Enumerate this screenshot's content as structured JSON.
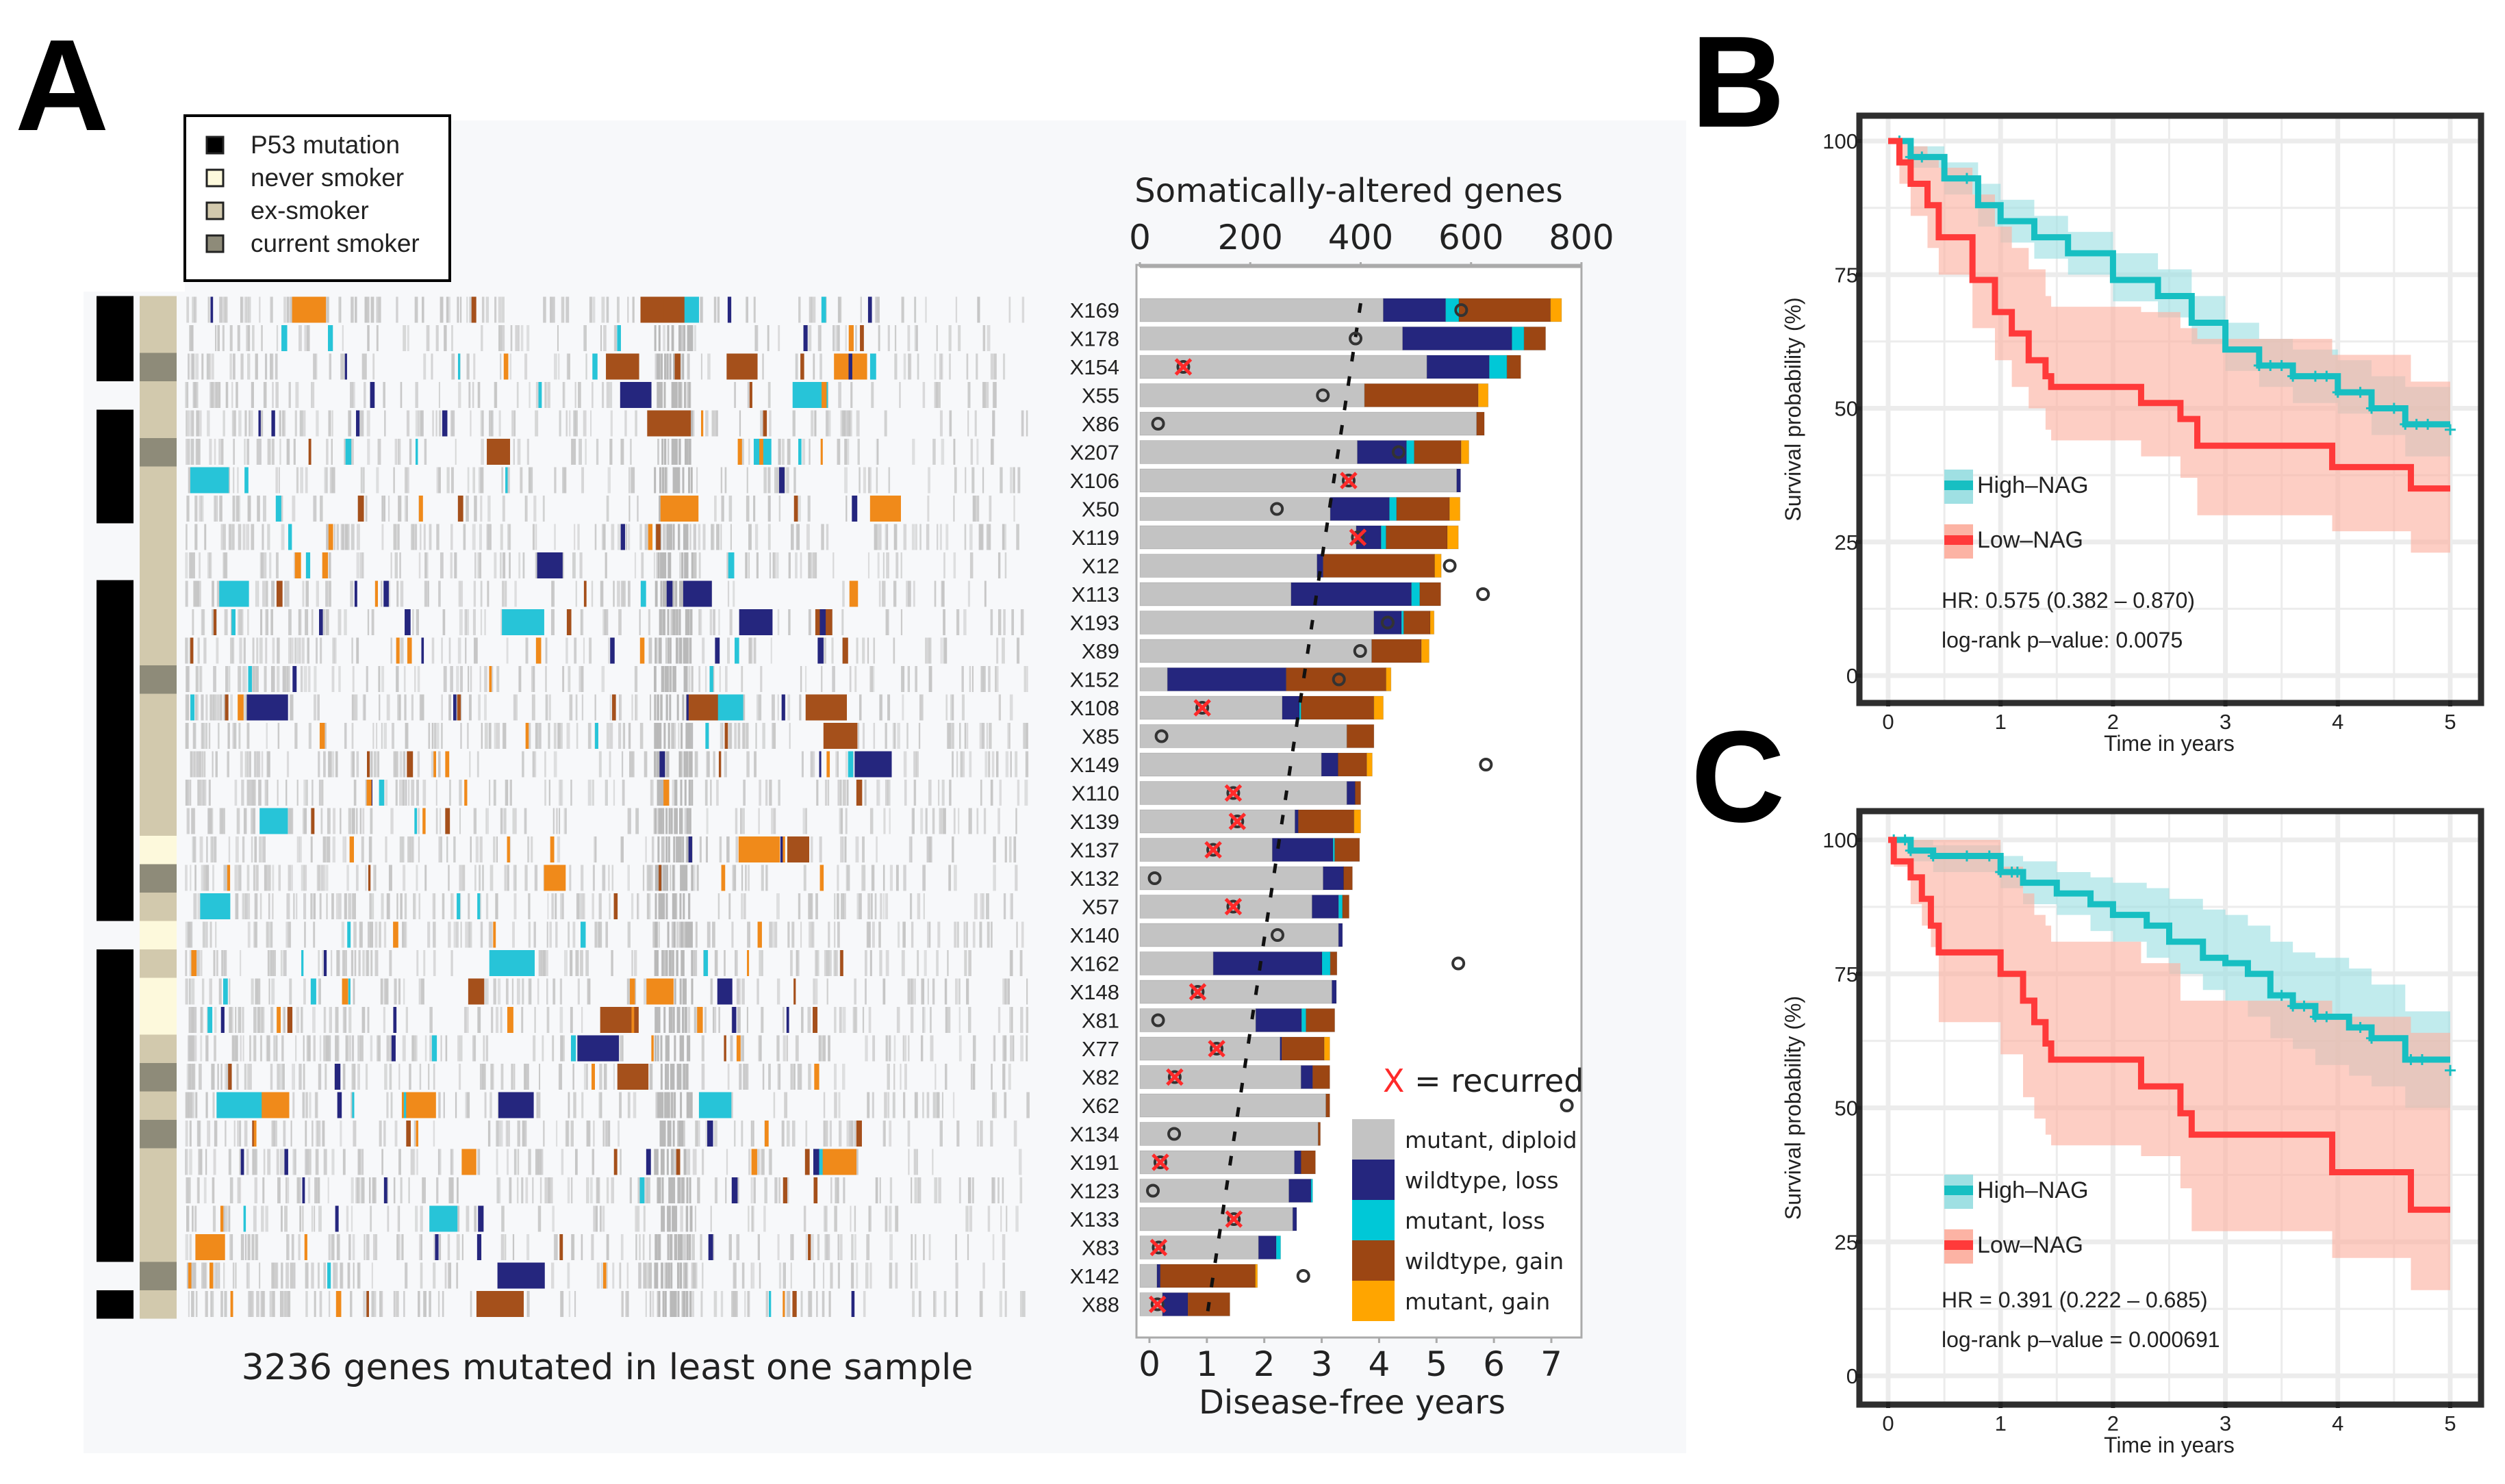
{
  "panel_labels": {
    "a": "A",
    "b": "B",
    "c": "C"
  },
  "annotation_legend": {
    "items": [
      {
        "label": "P53 mutation",
        "color": "#000000"
      },
      {
        "label": "never smoker",
        "color": "#fdf9dc"
      },
      {
        "label": "ex-smoker",
        "color": "#d2c9ad"
      },
      {
        "label": "current smoker",
        "color": "#8e8b79"
      }
    ]
  },
  "heatmap": {
    "caption": "3236 genes mutated in least one sample"
  },
  "chart_data": [
    {
      "type": "bar",
      "stacked": true,
      "orientation": "horizontal",
      "title": "Somatically-altered genes",
      "xlabel_bottom": "Disease-free years",
      "xlim_genes": [
        0,
        800
      ],
      "xticks_genes": [
        0,
        200,
        400,
        600,
        800
      ],
      "xlim_years": [
        0,
        7
      ],
      "xticks_years": [
        0,
        1,
        2,
        3,
        4,
        5,
        6,
        7
      ],
      "recurred_label_x": "X",
      "recurred_label_rest": " = recurred",
      "legend": [
        {
          "key": "mutant_diploid",
          "label": "mutant, diploid",
          "color": "#c3c3c3"
        },
        {
          "key": "wildtype_loss",
          "label": "wildtype, loss",
          "color": "#25267e"
        },
        {
          "key": "mutant_loss",
          "label": "mutant, loss",
          "color": "#00c8d7"
        },
        {
          "key": "wildtype_gain",
          "label": "wildtype, gain",
          "color": "#9c4613"
        },
        {
          "key": "mutant_gain",
          "label": "mutant, gain",
          "color": "#ffa500"
        }
      ],
      "trend_line_genes": [
        400,
        123
      ],
      "samples": [
        {
          "id": "X169",
          "p53": true,
          "smoking": "ex",
          "segments": [
            441,
            113,
            24,
            166,
            20
          ],
          "dfy": 5.43,
          "recurred": false
        },
        {
          "id": "X178",
          "p53": true,
          "smoking": "ex",
          "segments": [
            476,
            198,
            22,
            39,
            0
          ],
          "dfy": 3.59,
          "recurred": false
        },
        {
          "id": "X154",
          "p53": true,
          "smoking": "current",
          "segments": [
            520,
            113,
            32,
            25,
            0
          ],
          "dfy": 0.59,
          "recurred": true
        },
        {
          "id": "X55",
          "p53": false,
          "smoking": "ex",
          "segments": [
            407,
            0,
            0,
            206,
            18
          ],
          "dfy": 3.02,
          "recurred": false
        },
        {
          "id": "X86",
          "p53": true,
          "smoking": "ex",
          "segments": [
            610,
            0,
            0,
            14,
            0
          ],
          "dfy": 0.15,
          "recurred": false
        },
        {
          "id": "X207",
          "p53": true,
          "smoking": "current",
          "segments": [
            394,
            89,
            14,
            85,
            14
          ],
          "dfy": 4.34,
          "recurred": false
        },
        {
          "id": "X106",
          "p53": true,
          "smoking": "ex",
          "segments": [
            574,
            7,
            0,
            0,
            0
          ],
          "dfy": 3.47,
          "recurred": true
        },
        {
          "id": "X50",
          "p53": true,
          "smoking": "ex",
          "segments": [
            345,
            107,
            13,
            96,
            19
          ],
          "dfy": 2.22,
          "recurred": false
        },
        {
          "id": "X119",
          "p53": false,
          "smoking": "ex",
          "segments": [
            392,
            45,
            9,
            111,
            20
          ],
          "dfy": 3.63,
          "recurred": true
        },
        {
          "id": "X12",
          "p53": false,
          "smoking": "ex",
          "segments": [
            321,
            11,
            0,
            202,
            12
          ],
          "dfy": 5.23,
          "recurred": false
        },
        {
          "id": "X113",
          "p53": true,
          "smoking": "ex",
          "segments": [
            274,
            218,
            15,
            38,
            0
          ],
          "dfy": 5.81,
          "recurred": false
        },
        {
          "id": "X193",
          "p53": true,
          "smoking": "ex",
          "segments": [
            424,
            50,
            4,
            48,
            7
          ],
          "dfy": 4.15,
          "recurred": false
        },
        {
          "id": "X89",
          "p53": true,
          "smoking": "ex",
          "segments": [
            420,
            0,
            0,
            90,
            14
          ],
          "dfy": 3.67,
          "recurred": false
        },
        {
          "id": "X152",
          "p53": true,
          "smoking": "current",
          "segments": [
            50,
            215,
            0,
            181,
            9
          ],
          "dfy": 3.3,
          "recurred": false
        },
        {
          "id": "X108",
          "p53": true,
          "smoking": "ex",
          "segments": [
            258,
            31,
            3,
            132,
            17
          ],
          "dfy": 0.92,
          "recurred": true
        },
        {
          "id": "X85",
          "p53": true,
          "smoking": "ex",
          "segments": [
            375,
            0,
            0,
            49,
            0
          ],
          "dfy": 0.21,
          "recurred": false
        },
        {
          "id": "X149",
          "p53": true,
          "smoking": "ex",
          "segments": [
            329,
            30,
            0,
            52,
            10
          ],
          "dfy": 5.86,
          "recurred": false
        },
        {
          "id": "X110",
          "p53": true,
          "smoking": "ex",
          "segments": [
            375,
            15,
            0,
            10,
            0
          ],
          "dfy": 1.46,
          "recurred": true
        },
        {
          "id": "X139",
          "p53": true,
          "smoking": "ex",
          "segments": [
            281,
            6,
            0,
            101,
            12
          ],
          "dfy": 1.53,
          "recurred": true
        },
        {
          "id": "X137",
          "p53": true,
          "smoking": "never",
          "segments": [
            240,
            110,
            3,
            45,
            0
          ],
          "dfy": 1.11,
          "recurred": true
        },
        {
          "id": "X132",
          "p53": true,
          "smoking": "current",
          "segments": [
            332,
            37,
            0,
            16,
            0
          ],
          "dfy": 0.09,
          "recurred": false
        },
        {
          "id": "X57",
          "p53": true,
          "smoking": "ex",
          "segments": [
            312,
            48,
            7,
            12,
            0
          ],
          "dfy": 1.46,
          "recurred": true
        },
        {
          "id": "X140",
          "p53": false,
          "smoking": "never",
          "segments": [
            360,
            7,
            0,
            0,
            0
          ],
          "dfy": 2.23,
          "recurred": false
        },
        {
          "id": "X162",
          "p53": true,
          "smoking": "ex",
          "segments": [
            133,
            197,
            15,
            12,
            0
          ],
          "dfy": 5.38,
          "recurred": false
        },
        {
          "id": "X148",
          "p53": true,
          "smoking": "never",
          "segments": [
            348,
            8,
            0,
            0,
            0
          ],
          "dfy": 0.84,
          "recurred": true
        },
        {
          "id": "X81",
          "p53": true,
          "smoking": "never",
          "segments": [
            210,
            83,
            8,
            52,
            0
          ],
          "dfy": 0.15,
          "recurred": false
        },
        {
          "id": "X77",
          "p53": true,
          "smoking": "ex",
          "segments": [
            254,
            3,
            0,
            77,
            10
          ],
          "dfy": 1.17,
          "recurred": true
        },
        {
          "id": "X82",
          "p53": true,
          "smoking": "current",
          "segments": [
            292,
            21,
            0,
            31,
            0
          ],
          "dfy": 0.44,
          "recurred": true
        },
        {
          "id": "X62",
          "p53": true,
          "smoking": "ex",
          "segments": [
            337,
            0,
            0,
            7,
            0
          ],
          "dfy": 7.27,
          "recurred": false
        },
        {
          "id": "X134",
          "p53": true,
          "smoking": "current",
          "segments": [
            323,
            0,
            0,
            4,
            0
          ],
          "dfy": 0.43,
          "recurred": false
        },
        {
          "id": "X191",
          "p53": true,
          "smoking": "ex",
          "segments": [
            280,
            12,
            0,
            26,
            0
          ],
          "dfy": 0.19,
          "recurred": true
        },
        {
          "id": "X123",
          "p53": true,
          "smoking": "ex",
          "segments": [
            270,
            40,
            3,
            0,
            0
          ],
          "dfy": 0.06,
          "recurred": false
        },
        {
          "id": "X133",
          "p53": true,
          "smoking": "ex",
          "segments": [
            277,
            7,
            0,
            0,
            0
          ],
          "dfy": 1.47,
          "recurred": true
        },
        {
          "id": "X83",
          "p53": true,
          "smoking": "ex",
          "segments": [
            215,
            32,
            8,
            0,
            0
          ],
          "dfy": 0.16,
          "recurred": true
        },
        {
          "id": "X142",
          "p53": false,
          "smoking": "current",
          "segments": [
            31,
            6,
            0,
            172,
            4
          ],
          "dfy": 2.68,
          "recurred": false
        },
        {
          "id": "X88",
          "p53": true,
          "smoking": "ex",
          "segments": [
            41,
            46,
            0,
            76,
            0
          ],
          "dfy": 0.14,
          "recurred": true
        }
      ]
    },
    {
      "type": "line",
      "subtype": "kaplan-meier",
      "xlabel": "Time in years",
      "ylabel": "Survival probability (%)",
      "xlim": [
        0,
        5
      ],
      "ylim": [
        0,
        100
      ],
      "xticks": [
        0,
        1,
        2,
        3,
        4,
        5
      ],
      "yticks": [
        0,
        25,
        50,
        75,
        100
      ],
      "grid": true,
      "legend_placement": "middle-left",
      "hr_text": "HR: 0.575 (0.382 – 0.870)",
      "p_text": "log-rank p–value:  0.0075",
      "series": [
        {
          "name": "High–NAG",
          "color": "#17bfc2",
          "band_color": "#9fe0e3",
          "x": [
            0,
            0.2,
            0.5,
            0.8,
            1.0,
            1.3,
            1.6,
            2.0,
            2.4,
            2.7,
            3.0,
            3.3,
            3.6,
            4.0,
            4.3,
            4.6
          ],
          "y": [
            100,
            97,
            93,
            88,
            85,
            82,
            79,
            74,
            71,
            66,
            61,
            58,
            56,
            53,
            50,
            47
          ],
          "x_end": 5,
          "y_end": 46,
          "upper": [
            100,
            99,
            96,
            92,
            89,
            86,
            83,
            79,
            76,
            71,
            66,
            63,
            61,
            59,
            56,
            54
          ],
          "lower": [
            100,
            95,
            90,
            84,
            81,
            78,
            75,
            70,
            67,
            62,
            57,
            54,
            51,
            49,
            45,
            41
          ],
          "censor_times": [
            0.1,
            0.2,
            0.3,
            0.7,
            3.3,
            3.4,
            3.5,
            3.6,
            3.8,
            3.9,
            4.0,
            4.2,
            4.3,
            4.5,
            4.6,
            4.7,
            4.8,
            5.0
          ]
        },
        {
          "name": "Low–NAG",
          "color": "#ff3a3a",
          "band_color": "#fcb3a4",
          "x": [
            0,
            0.1,
            0.2,
            0.35,
            0.45,
            0.75,
            0.95,
            1.1,
            1.25,
            1.4,
            1.45,
            2.25,
            2.6,
            2.75,
            3.95,
            4.65
          ],
          "y": [
            100,
            96,
            92,
            88,
            82,
            74,
            68,
            64,
            59,
            56,
            54,
            51,
            48,
            43,
            39,
            35
          ],
          "x_end": 5,
          "y_end": 35,
          "upper": [
            100,
            100,
            99,
            97,
            95,
            90,
            84,
            80,
            76,
            71,
            69,
            68,
            65,
            63,
            60,
            55
          ],
          "lower": [
            100,
            92,
            86,
            80,
            75,
            65,
            59,
            54,
            50,
            46,
            44,
            41,
            37,
            30,
            27,
            23
          ],
          "censor_times": []
        }
      ]
    },
    {
      "type": "line",
      "subtype": "kaplan-meier",
      "xlabel": "Time in years",
      "ylabel": "Survival probability (%)",
      "xlim": [
        0,
        5
      ],
      "ylim": [
        0,
        100
      ],
      "xticks": [
        0,
        1,
        2,
        3,
        4,
        5
      ],
      "yticks": [
        0,
        25,
        50,
        75,
        100
      ],
      "grid": true,
      "legend_placement": "middle-left",
      "hr_text": "HR = 0.391 (0.222 – 0.685)",
      "p_text": "log-rank p–value =  0.000691",
      "series": [
        {
          "name": "High–NAG",
          "color": "#17bfc2",
          "band_color": "#9fe0e3",
          "x": [
            0,
            0.2,
            0.4,
            1.0,
            1.2,
            1.5,
            1.8,
            2.0,
            2.3,
            2.5,
            2.8,
            3.0,
            3.2,
            3.4,
            3.6,
            3.8,
            4.1,
            4.3,
            4.6
          ],
          "y": [
            100,
            98,
            97,
            94,
            92,
            90,
            88,
            86,
            84,
            81,
            78,
            77,
            75,
            71,
            69,
            67,
            65,
            63,
            59
          ],
          "x_end": 5,
          "y_end": 57,
          "upper": [
            100,
            100,
            99,
            97,
            96,
            94,
            93,
            92,
            91,
            89,
            87,
            86,
            84,
            81,
            79,
            78,
            76,
            73,
            68
          ],
          "lower": [
            100,
            96,
            94,
            91,
            88,
            86,
            83,
            81,
            78,
            75,
            72,
            70,
            67,
            63,
            61,
            58,
            56,
            54,
            50
          ],
          "censor_times": [
            0.05,
            0.15,
            0.2,
            0.4,
            0.7,
            0.9,
            1.0,
            1.1,
            1.15,
            3.5,
            3.6,
            3.7,
            3.8,
            3.9,
            4.2,
            4.3,
            4.65,
            4.75,
            5.0
          ]
        },
        {
          "name": "Low–NAG",
          "color": "#ff3a3a",
          "band_color": "#fcb3a4",
          "x": [
            0,
            0.05,
            0.2,
            0.3,
            0.38,
            0.45,
            1.0,
            1.2,
            1.3,
            1.4,
            1.45,
            2.25,
            2.6,
            2.7,
            3.95,
            4.65
          ],
          "y": [
            100,
            96,
            93,
            89,
            84,
            79,
            75,
            70,
            66,
            62,
            59,
            54,
            49,
            45,
            38,
            31
          ],
          "x_end": 5,
          "y_end": 31,
          "upper": [
            100,
            100,
            100,
            100,
            100,
            100,
            95,
            90,
            86,
            84,
            81,
            77,
            70,
            70,
            67,
            64
          ],
          "lower": [
            100,
            95,
            88,
            84,
            80,
            66,
            60,
            52,
            48,
            45,
            43,
            41,
            35,
            27,
            22,
            16
          ],
          "censor_times": []
        }
      ]
    }
  ]
}
